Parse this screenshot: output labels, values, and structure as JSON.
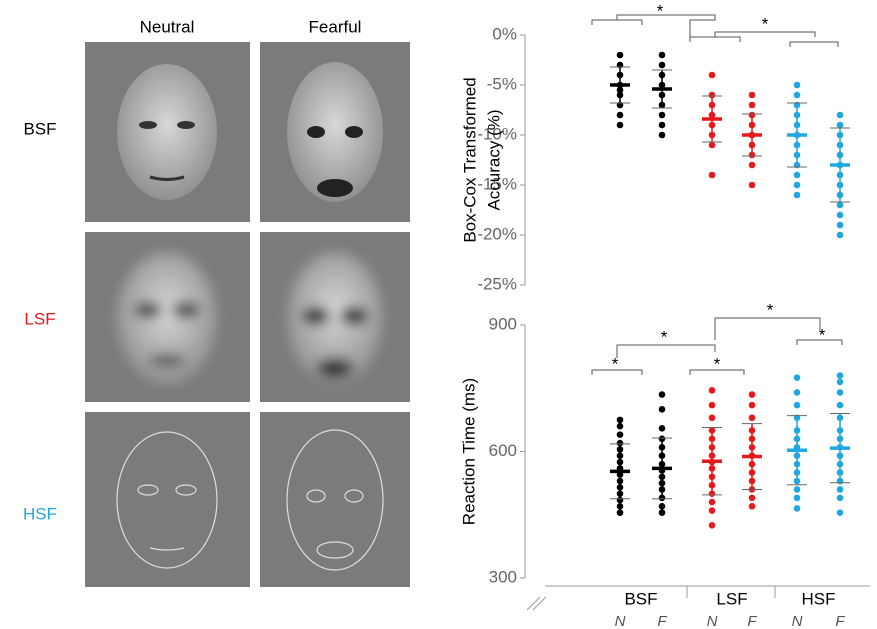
{
  "face_grid": {
    "columns": [
      "Neutral",
      "Fearful"
    ],
    "rows": [
      {
        "label": "BSF",
        "color": "#000000"
      },
      {
        "label": "LSF",
        "color": "#e8191b"
      },
      {
        "label": "HSF",
        "color": "#1ea7e1"
      }
    ]
  },
  "chart_data": [
    {
      "type": "strip",
      "y_label": [
        "Box-Cox Transformed",
        "Accuracy (%)"
      ],
      "ylim": [
        -25,
        0
      ],
      "yticks": [
        {
          "value": 0,
          "label": "0%"
        },
        {
          "value": -5,
          "label": "-5%"
        },
        {
          "value": -10,
          "label": "-10%"
        },
        {
          "value": -15,
          "label": "-15%"
        },
        {
          "value": -20,
          "label": "-20%"
        },
        {
          "value": -25,
          "label": "-25%"
        }
      ],
      "series": [
        {
          "color": "#000000",
          "points": [
            -2,
            -3,
            -4,
            -5,
            -5.5,
            -6,
            -7,
            -8,
            -9
          ],
          "mean": -5,
          "sd": 1.8
        },
        {
          "color": "#000000",
          "points": [
            -2,
            -3,
            -4,
            -5,
            -6,
            -7,
            -8,
            -9,
            -10
          ],
          "mean": -5.4,
          "sd": 1.9
        },
        {
          "color": "#e8191b",
          "points": [
            -4,
            -6,
            -7,
            -8,
            -9,
            -10,
            -11,
            -14
          ],
          "mean": -8.4,
          "sd": 2.3
        },
        {
          "color": "#e8191b",
          "points": [
            -6,
            -7,
            -8,
            -9,
            -10,
            -11,
            -12,
            -13,
            -15
          ],
          "mean": -10,
          "sd": 2.1
        },
        {
          "color": "#1ea7e1",
          "points": [
            -5,
            -6,
            -7,
            -8,
            -9,
            -10,
            -11,
            -12,
            -13,
            -14,
            -15,
            -16
          ],
          "mean": -10,
          "sd": 3.2
        },
        {
          "color": "#1ea7e1",
          "points": [
            -8,
            -9,
            -10,
            -11,
            -12,
            -13,
            -14,
            -15,
            -16,
            -17,
            -18,
            -19,
            -20
          ],
          "mean": -13,
          "sd": 3.7
        }
      ],
      "annotations": [
        "*",
        "*"
      ]
    },
    {
      "type": "strip",
      "y_label": "Reaction Time (ms)",
      "ylim": [
        300,
        900
      ],
      "yticks": [
        300,
        600,
        900
      ],
      "groups": [
        "BSF",
        "LSF",
        "HSF"
      ],
      "x_labels": [
        "N",
        "F",
        "N",
        "F",
        "N",
        "F"
      ],
      "series": [
        {
          "color": "#000000",
          "points": [
            455,
            470,
            485,
            500,
            515,
            530,
            545,
            560,
            575,
            590,
            605,
            620,
            640,
            660,
            675
          ],
          "mean": 553,
          "sd": 65
        },
        {
          "color": "#000000",
          "points": [
            455,
            470,
            490,
            510,
            525,
            540,
            555,
            570,
            590,
            610,
            630,
            655,
            700,
            735
          ],
          "mean": 560,
          "sd": 72
        },
        {
          "color": "#e8191b",
          "points": [
            425,
            460,
            480,
            500,
            520,
            540,
            560,
            575,
            590,
            610,
            630,
            650,
            680,
            710,
            745
          ],
          "mean": 577,
          "sd": 80
        },
        {
          "color": "#e8191b",
          "points": [
            470,
            490,
            510,
            530,
            550,
            570,
            590,
            610,
            630,
            650,
            680,
            710,
            735
          ],
          "mean": 588,
          "sd": 78
        },
        {
          "color": "#1ea7e1",
          "points": [
            465,
            490,
            510,
            530,
            550,
            570,
            590,
            610,
            630,
            650,
            680,
            710,
            740,
            775
          ],
          "mean": 603,
          "sd": 82
        },
        {
          "color": "#1ea7e1",
          "points": [
            455,
            490,
            510,
            530,
            550,
            570,
            590,
            610,
            630,
            650,
            680,
            710,
            740,
            765,
            780
          ],
          "mean": 608,
          "sd": 82
        }
      ],
      "annotations": [
        "*",
        "*",
        "*",
        "*",
        "*"
      ]
    }
  ]
}
